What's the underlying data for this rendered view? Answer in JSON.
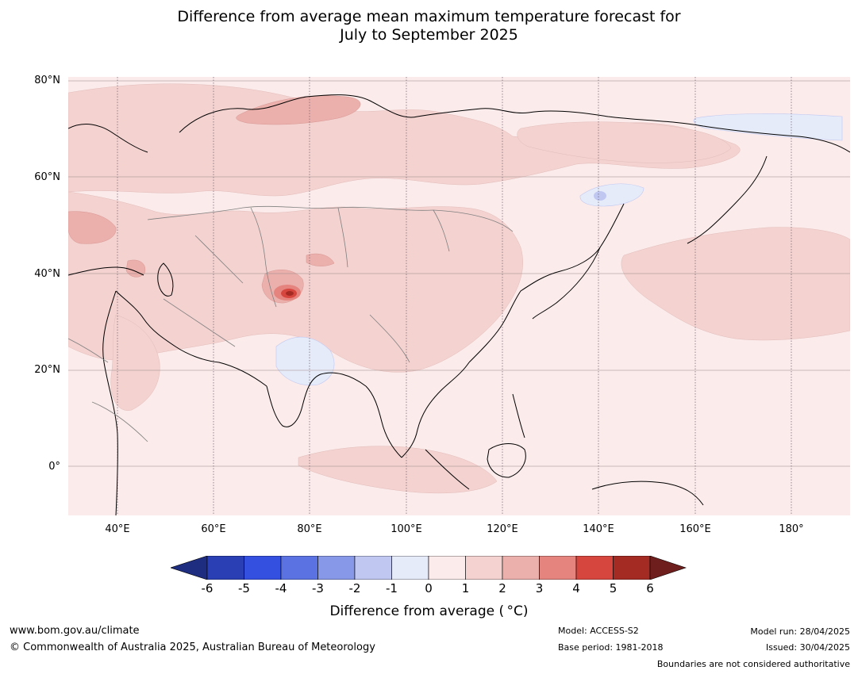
{
  "title": {
    "line1": "Difference from average mean maximum temperature forecast for",
    "line2": "July to September 2025"
  },
  "map": {
    "region": "Asia",
    "lat_labels": [
      "80°N",
      "60°N",
      "40°N",
      "20°N",
      "0°"
    ],
    "lon_labels": [
      "40°E",
      "60°E",
      "80°E",
      "100°E",
      "120°E",
      "140°E",
      "160°E",
      "180°"
    ],
    "anomaly_areas": [
      {
        "area": "Background",
        "class": "0 to 1"
      },
      {
        "area": "Northern Russia and Siberia",
        "class": "1 to 2"
      },
      {
        "area": "Central Asia and China",
        "class": "1 to 2"
      },
      {
        "area": "Northern Pacific",
        "class": "1 to 2"
      },
      {
        "area": "Eastern Europe",
        "class": "2 to 3"
      },
      {
        "area": "Arctic coast near Ural",
        "class": "2 to 3"
      },
      {
        "area": "Western Himalaya",
        "class": "4 to 6"
      },
      {
        "area": "Central India",
        "class": "-1 to 0"
      },
      {
        "area": "Sea of Okhotsk",
        "class": "-2 to 0"
      },
      {
        "area": "East Siberian coast",
        "class": "-1 to 0"
      }
    ],
    "colors": {
      "ocean_land_base": "#fbebea",
      "pos1": "#f3d2d0",
      "pos2": "#ebb0ac",
      "pos3": "#e5837e",
      "pos4": "#d7463e",
      "pos5": "#a42a24",
      "neg1": "#e6ebf9",
      "neg2": "#c0c8f2",
      "coastline": "#000000",
      "borders": "#808080"
    }
  },
  "colorbar": {
    "ticks": [
      "-6",
      "-5",
      "-4",
      "-3",
      "-2",
      "-1",
      "0",
      "1",
      "2",
      "3",
      "4",
      "5",
      "6"
    ],
    "colors": [
      "#1e2d80",
      "#2b3fb4",
      "#3350e0",
      "#5a72e2",
      "#8898e8",
      "#c0c8f2",
      "#e6ebf9",
      "#fbebea",
      "#f3d2d0",
      "#ebb0ac",
      "#e5837e",
      "#d7463e",
      "#a42a24",
      "#6e1e1c"
    ],
    "label": "Difference from average ( °C)"
  },
  "footer": {
    "site": "www.bom.gov.au/climate",
    "copyright": "© Commonwealth of Australia 2025, Australian Bureau of Meteorology",
    "model": "Model: ACCESS-S2",
    "base_period": "Base period: 1981-2018",
    "model_run": "Model run: 28/04/2025",
    "issued": "Issued: 30/04/2025",
    "disclaimer": "Boundaries are not considered authoritative"
  }
}
